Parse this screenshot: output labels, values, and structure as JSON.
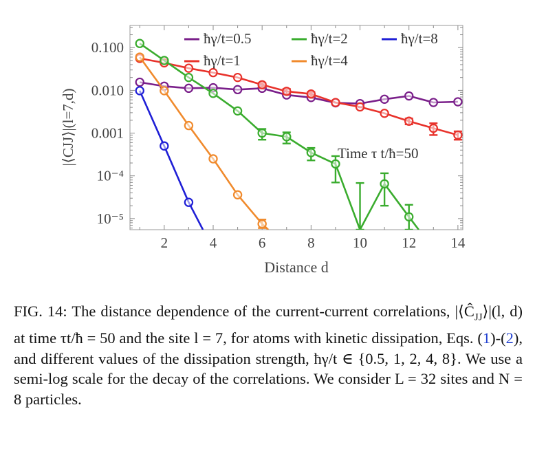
{
  "chart_data": {
    "type": "line",
    "yscale": "log",
    "xlabel": "Distance d",
    "ylabel": "|⟨Cⱼⱼ⟩|(l=7,d)",
    "ylabel_text": "|⟨CJJ⟩|(l=7,d)",
    "xlim": [
      0.6,
      14.2
    ],
    "ylim": [
      5.5e-06,
      0.33
    ],
    "xticks": [
      2,
      4,
      6,
      8,
      10,
      12,
      14
    ],
    "xtick_labels": [
      "2",
      "4",
      "6",
      "8",
      "10",
      "12",
      "14"
    ],
    "yticks": [
      0.1,
      0.01,
      0.001,
      0.0001,
      1e-05
    ],
    "ytick_labels": [
      "0.100",
      "0.010",
      "0.001",
      "10⁻⁴",
      "10⁻⁵"
    ],
    "annotation": "Time τ t/ħ=50",
    "legend_location": "top",
    "series": [
      {
        "name": "ħγ/t=0.5",
        "color": "#7a1f8a",
        "x": [
          1,
          2,
          3,
          4,
          5,
          6,
          7,
          8,
          9,
          10,
          11,
          12,
          13,
          14
        ],
        "y": [
          0.0155,
          0.0125,
          0.0112,
          0.0115,
          0.0104,
          0.0112,
          0.0078,
          0.0068,
          0.0051,
          0.0049,
          0.0062,
          0.0074,
          0.0052,
          0.0054
        ]
      },
      {
        "name": "ħγ/t=1",
        "color": "#e8322b",
        "x": [
          1,
          2,
          3,
          4,
          5,
          6,
          7,
          8,
          9,
          10,
          11,
          12,
          13,
          14
        ],
        "y": [
          0.056,
          0.044,
          0.033,
          0.026,
          0.02,
          0.0135,
          0.0095,
          0.0082,
          0.0052,
          0.0041,
          0.0029,
          0.0019,
          0.0013,
          0.0009
        ],
        "yerr": [
          0,
          0,
          0,
          0,
          0,
          0.0015,
          0.0013,
          0.001,
          0,
          0,
          0,
          0.0003,
          0.0004,
          0.0002
        ]
      },
      {
        "name": "ħγ/t=2",
        "color": "#3aac2e",
        "x": [
          1,
          2,
          3,
          4,
          5,
          6,
          7,
          8,
          9,
          10,
          11,
          12,
          12.4
        ],
        "y": [
          0.125,
          0.05,
          0.02,
          0.0085,
          0.0033,
          0.001,
          0.00082,
          0.00035,
          0.00019,
          5.5e-06,
          6.5e-05,
          1.1e-05,
          5.5e-06
        ],
        "markers": [
          true,
          true,
          true,
          true,
          true,
          true,
          true,
          true,
          true,
          false,
          true,
          true,
          false
        ],
        "yerr_lo": [
          0,
          0,
          0,
          0,
          0,
          0.0003,
          0.00025,
          0.00012,
          0.00012,
          0,
          4.5e-05,
          5.5e-06,
          0
        ],
        "yerr_hi": [
          0,
          0,
          0,
          0,
          0,
          0.00025,
          0.00022,
          0.0001,
          0.0001,
          0,
          5e-05,
          1e-05,
          0
        ],
        "extra_errbar": {
          "x": 10,
          "lo": 5.5e-06,
          "hi": 6.8e-05
        }
      },
      {
        "name": "ħγ/t=4",
        "color": "#f08a2c",
        "x": [
          1,
          2,
          3,
          4,
          5,
          6,
          6.25
        ],
        "y": [
          0.06,
          0.0098,
          0.0015,
          0.00025,
          3.6e-05,
          7.5e-06,
          5.5e-06
        ],
        "markers": [
          true,
          true,
          true,
          true,
          true,
          true,
          false
        ],
        "yerr_lo": [
          0,
          0,
          0,
          0,
          0,
          1.5e-06,
          0
        ],
        "yerr_hi": [
          0,
          0,
          0,
          0,
          0,
          2e-06,
          0
        ]
      },
      {
        "name": "ħγ/t=8",
        "color": "#1f1fd6",
        "x": [
          1,
          2,
          3,
          3.58
        ],
        "y": [
          0.0098,
          0.0005,
          2.4e-05,
          5.5e-06
        ],
        "markers": [
          true,
          true,
          true,
          false
        ]
      }
    ]
  },
  "legend_items": [
    {
      "label": "ħγ/t=0.5",
      "color": "#7a1f8a"
    },
    {
      "label": "ħγ/t=2",
      "color": "#3aac2e"
    },
    {
      "label": "ħγ/t=8",
      "color": "#1f1fd6"
    },
    {
      "label": "ħγ/t=1",
      "color": "#e8322b"
    },
    {
      "label": "ħγ/t=4",
      "color": "#f08a2c"
    }
  ],
  "caption": {
    "prefix": "FIG. 14: The distance dependence of the current-current correlations, |⟨Ĉ",
    "sub1": "JJ",
    "part2": "⟩|(l, d) at time τt/ħ = 50 and the site l = 7, for atoms with kinetic dissipation, Eqs. (",
    "ref1": "1",
    "part3": ")-(",
    "ref2": "2",
    "part4": "), and different values of the dissipation strength, ħγ/t ∈ {0.5, 1, 2, 4, 8}. We use a semi-log scale for the decay of the correlations. We consider L = 32 sites and N = 8 particles."
  }
}
